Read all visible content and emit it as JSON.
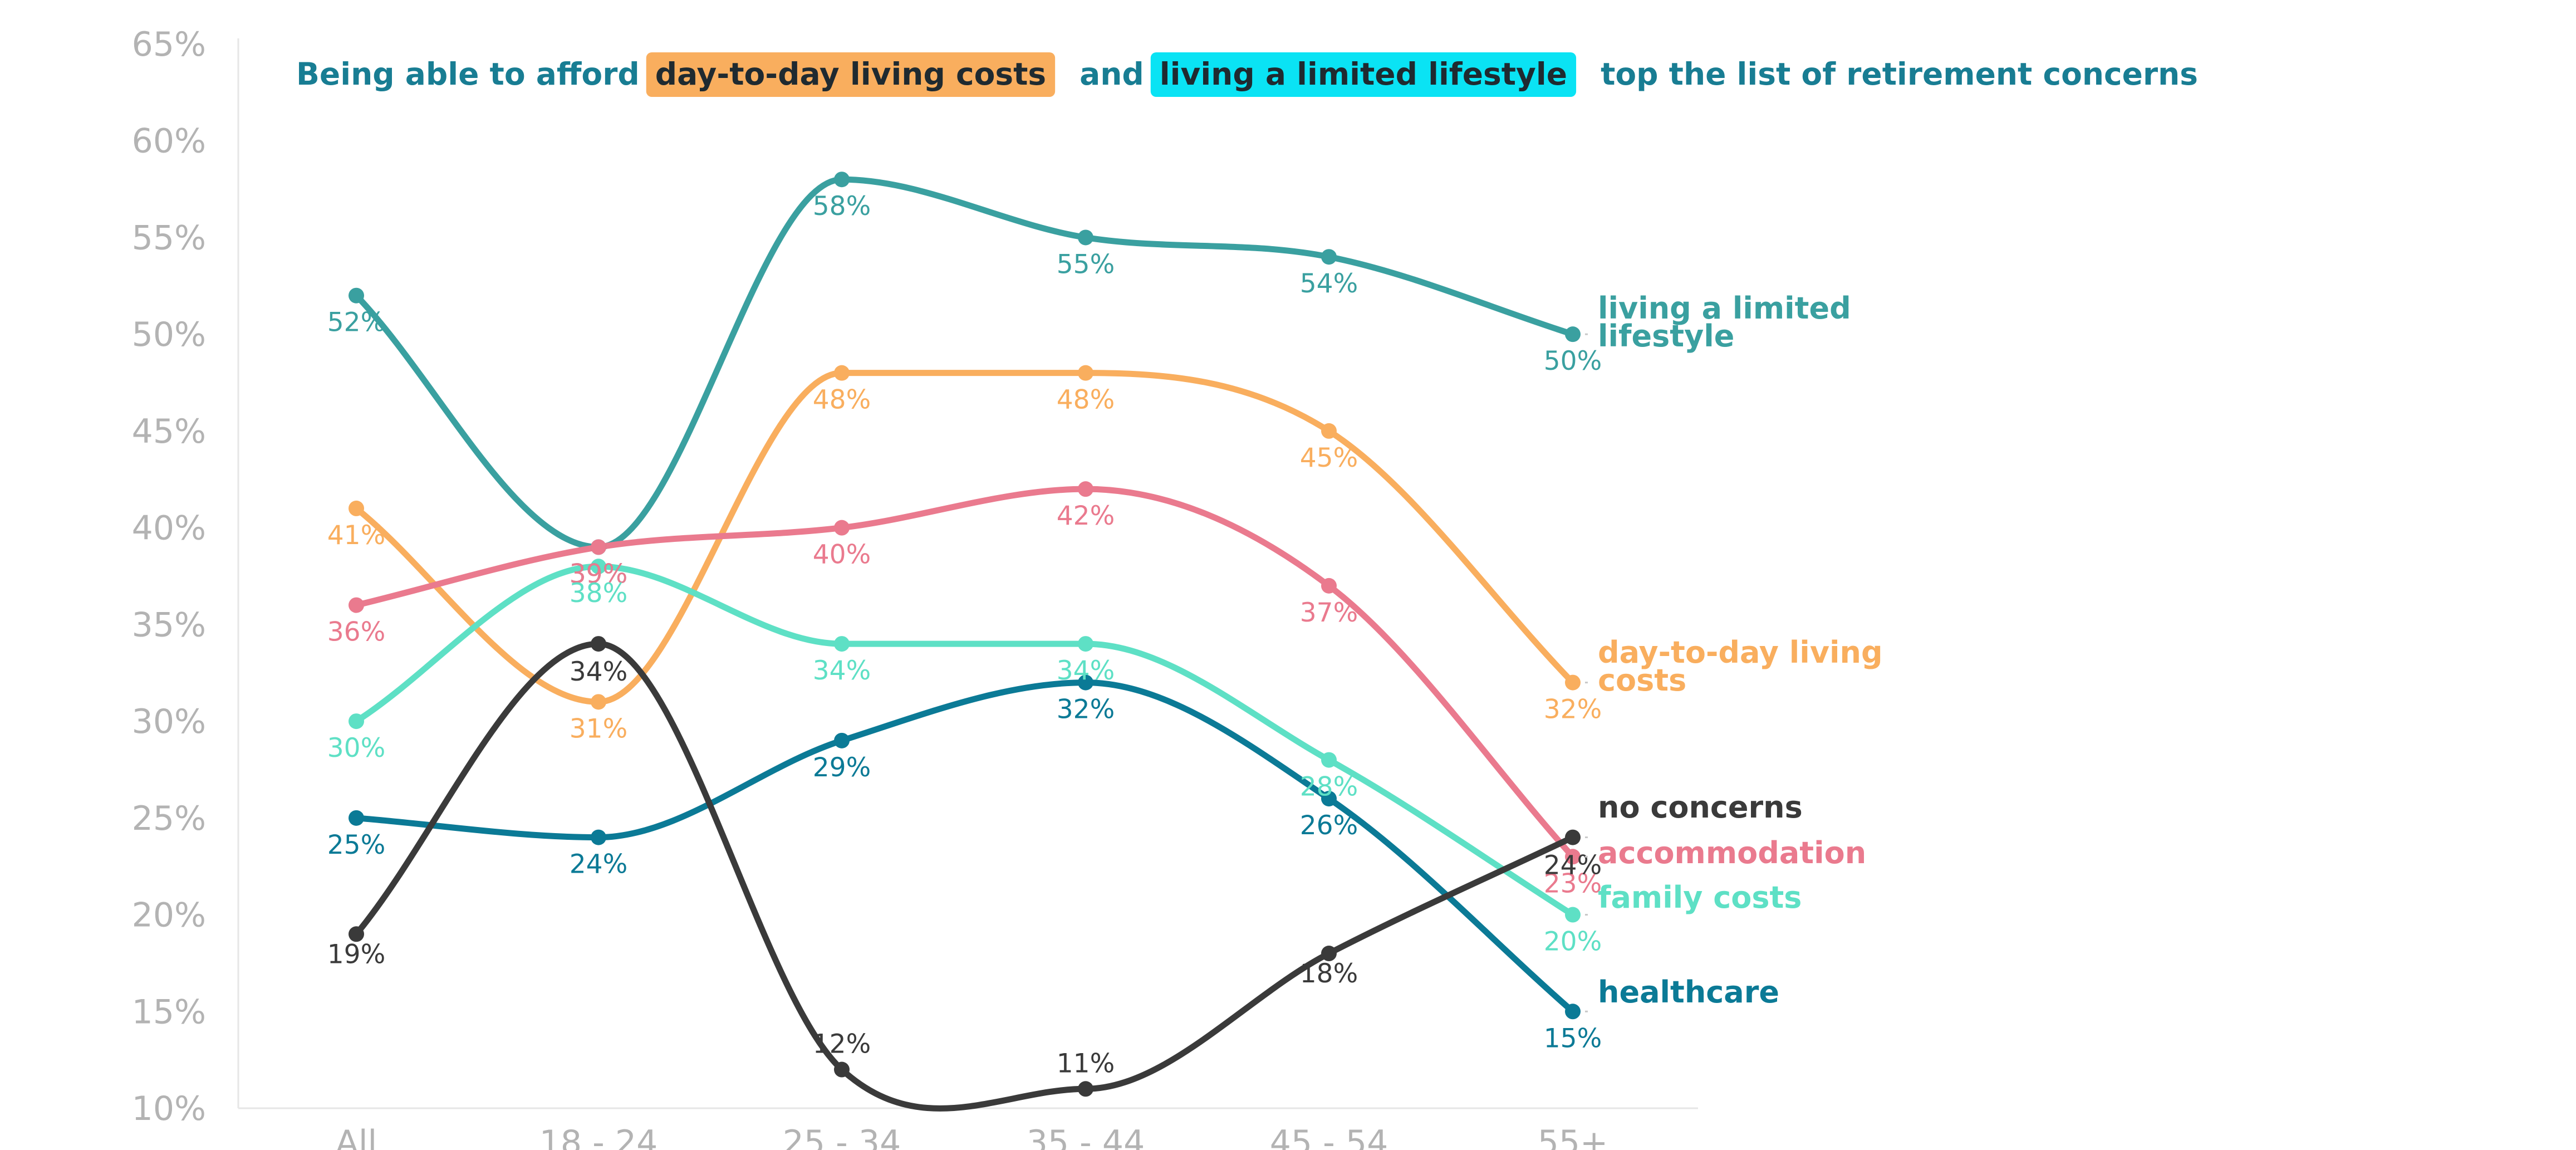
{
  "chart_data": {
    "type": "line",
    "title": {
      "part1": "Being able to afford",
      "highlight1": "day-to-day living costs",
      "part2": "and",
      "highlight2": "living a limited lifestyle",
      "part3": "top the list of retirement concerns"
    },
    "xlabel": "",
    "ylabel": "",
    "categories": [
      "All",
      "18 - 24",
      "25 - 34",
      "35 - 44",
      "45 - 54",
      "55+"
    ],
    "ylim": [
      10,
      65
    ],
    "yticks": [
      "10%",
      "15%",
      "20%",
      "25%",
      "30%",
      "35%",
      "40%",
      "45%",
      "50%",
      "55%",
      "60%",
      "65%"
    ],
    "grid": false,
    "legend": "direct labels at right end of each line",
    "value_suffix": "%",
    "series": [
      {
        "name": "living a limited lifestyle",
        "color": "#3aa0a0",
        "values": [
          52,
          39,
          58,
          55,
          54,
          50
        ],
        "label_lines": [
          "living a limited",
          "lifestyle"
        ]
      },
      {
        "name": "day-to-day living costs",
        "color": "#f9ae5e",
        "values": [
          41,
          31,
          48,
          48,
          45,
          32
        ],
        "label_lines": [
          "day-to-day living",
          "costs"
        ]
      },
      {
        "name": "accommodation",
        "color": "#ea7a8e",
        "values": [
          36,
          39,
          40,
          42,
          37,
          23
        ],
        "label_lines": [
          "accommodation"
        ]
      },
      {
        "name": "family costs",
        "color": "#5ee0c5",
        "values": [
          30,
          38,
          34,
          34,
          28,
          20
        ],
        "label_lines": [
          "family costs"
        ]
      },
      {
        "name": "healthcare",
        "color": "#0b7a96",
        "values": [
          25,
          24,
          29,
          32,
          26,
          15
        ],
        "label_lines": [
          "healthcare"
        ]
      },
      {
        "name": "no concerns",
        "color": "#3a3a3a",
        "values": [
          19,
          34,
          12,
          11,
          18,
          24
        ],
        "label_lines": [
          "no concerns"
        ]
      }
    ],
    "colors": {
      "title_text": "#187d93",
      "highlight1_bg": "#f9ae5e",
      "highlight2_bg": "#0ae3f4",
      "highlight_text": "#1f2a30",
      "axis": "#e6e6e6",
      "tick_text": "#b3b3b3"
    }
  }
}
